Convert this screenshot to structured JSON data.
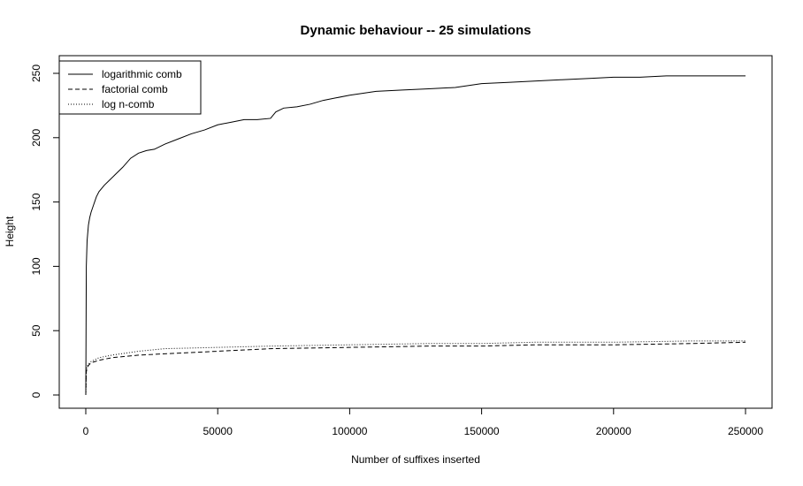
{
  "chart_data": {
    "type": "line",
    "title": "Dynamic behaviour -- 25 simulations",
    "xlabel": "Number of suffixes inserted",
    "ylabel": "Height",
    "xlim": [
      0,
      250000
    ],
    "ylim": [
      0,
      250
    ],
    "x_ticks": [
      0,
      50000,
      100000,
      150000,
      200000,
      250000
    ],
    "y_ticks": [
      0,
      50,
      100,
      150,
      200,
      250
    ],
    "grid": false,
    "legend_position": "top-left",
    "series": [
      {
        "name": "logarithmic comb",
        "line_style": "solid",
        "color": "#000000",
        "x": [
          0,
          200,
          500,
          1000,
          1500,
          2000,
          3000,
          4000,
          5000,
          7000,
          9000,
          11000,
          14000,
          17000,
          20000,
          23000,
          26000,
          30000,
          35000,
          40000,
          45000,
          50000,
          55000,
          60000,
          65000,
          70000,
          72000,
          75000,
          80000,
          85000,
          90000,
          95000,
          100000,
          110000,
          120000,
          130000,
          140000,
          150000,
          160000,
          170000,
          180000,
          190000,
          200000,
          210000,
          220000,
          230000,
          240000,
          250000
        ],
        "y": [
          0,
          100,
          120,
          132,
          138,
          142,
          148,
          154,
          158,
          163,
          167,
          171,
          177,
          184,
          188,
          190,
          191,
          195,
          199,
          203,
          206,
          210,
          212,
          214,
          214,
          215,
          220,
          223,
          224,
          226,
          229,
          231,
          233,
          236,
          237,
          238,
          239,
          242,
          243,
          244,
          245,
          246,
          247,
          247,
          248,
          248,
          248,
          248
        ]
      },
      {
        "name": "factorial comb",
        "line_style": "dashed",
        "color": "#000000",
        "x": [
          0,
          200,
          500,
          1000,
          2000,
          5000,
          10000,
          20000,
          30000,
          50000,
          70000,
          100000,
          130000,
          150000,
          170000,
          200000,
          230000,
          250000
        ],
        "y": [
          0,
          18,
          21,
          23,
          25,
          27,
          29,
          31,
          32,
          34,
          36,
          37,
          38,
          38,
          39,
          39,
          40,
          41
        ]
      },
      {
        "name": "log n-comb",
        "line_style": "dotted",
        "color": "#000000",
        "x": [
          0,
          200,
          500,
          1000,
          2000,
          5000,
          10000,
          20000,
          30000,
          50000,
          70000,
          100000,
          130000,
          150000,
          170000,
          200000,
          230000,
          250000
        ],
        "y": [
          0,
          20,
          22,
          24,
          26,
          29,
          31,
          34,
          36,
          37,
          38,
          39,
          40,
          40,
          41,
          41,
          42,
          42
        ]
      }
    ]
  }
}
